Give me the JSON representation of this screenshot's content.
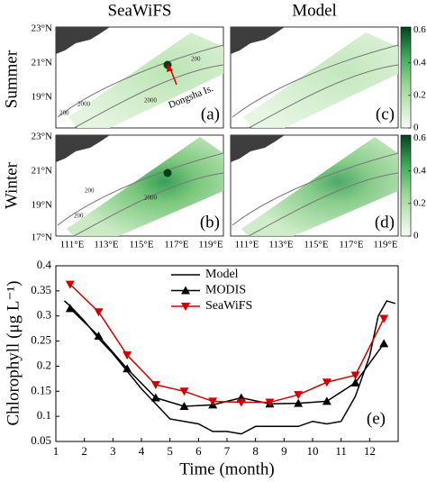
{
  "figure": {
    "column_titles": [
      "SeaWiFS",
      "Model"
    ],
    "row_labels": [
      "Summer",
      "Winter"
    ],
    "panels": [
      {
        "label": "(a)",
        "contour_labels": [
          "200",
          "2000",
          "2000",
          "200"
        ]
      },
      {
        "label": "(b)",
        "contour_labels": [
          "200",
          "2000",
          "200"
        ]
      },
      {
        "label": "(c)"
      },
      {
        "label": "(d)"
      }
    ],
    "lat_labels": [
      "23°N",
      "21°N",
      "19°N",
      "23°N",
      "21°N",
      "19°N",
      "17°N"
    ],
    "lon_labels": [
      "111°E",
      "113°E",
      "115°E",
      "117°E",
      "119°E"
    ],
    "annotation": "Dongsha Is.",
    "colorbar": {
      "clim": [
        0,
        0.62
      ],
      "ticks": [
        0,
        0.2,
        0.4,
        0.6
      ]
    }
  },
  "chart_data": {
    "type": "line",
    "x_label": "Time (month)",
    "y_label": "Chlorophyll (μg L⁻¹)",
    "annotation": "(e)",
    "xlim": [
      1,
      13
    ],
    "xticks": [
      1,
      2,
      3,
      4,
      5,
      6,
      7,
      8,
      9,
      10,
      11,
      12
    ],
    "ylim": [
      0.05,
      0.4
    ],
    "yticks": [
      0.05,
      0.1,
      0.15,
      0.2,
      0.25,
      0.3,
      0.35,
      0.4
    ],
    "series": [
      {
        "name": "Model",
        "color": "#000000",
        "marker": "none",
        "x": [
          1.3,
          1.5,
          2,
          2.5,
          3,
          3.5,
          4,
          4.5,
          5,
          5.5,
          6,
          6.5,
          7,
          7.5,
          8,
          8.5,
          9,
          9.5,
          10,
          10.5,
          11,
          11.5,
          12,
          12.3,
          12.6,
          12.9
        ],
        "values": [
          0.33,
          0.32,
          0.29,
          0.255,
          0.225,
          0.19,
          0.155,
          0.125,
          0.095,
          0.09,
          0.085,
          0.07,
          0.07,
          0.065,
          0.08,
          0.08,
          0.08,
          0.08,
          0.09,
          0.085,
          0.09,
          0.14,
          0.22,
          0.3,
          0.33,
          0.325
        ]
      },
      {
        "name": "MODIS",
        "color": "#000000",
        "marker": "triangle-up",
        "x": [
          1.5,
          2.5,
          3.5,
          4.5,
          5.5,
          6.5,
          7.5,
          8.5,
          9.5,
          10.5,
          11.5,
          12.5
        ],
        "values": [
          0.315,
          0.26,
          0.195,
          0.137,
          0.12,
          0.123,
          0.137,
          0.125,
          0.126,
          0.13,
          0.167,
          0.245
        ]
      },
      {
        "name": "SeaWiFS",
        "color": "#d00000",
        "marker": "triangle-down",
        "x": [
          1.5,
          2.5,
          3.5,
          4.5,
          5.5,
          6.5,
          7.5,
          8.5,
          9.5,
          10.5,
          11.5,
          12.5
        ],
        "values": [
          0.363,
          0.308,
          0.222,
          0.163,
          0.15,
          0.13,
          0.128,
          0.128,
          0.143,
          0.168,
          0.182,
          0.295
        ]
      }
    ]
  }
}
